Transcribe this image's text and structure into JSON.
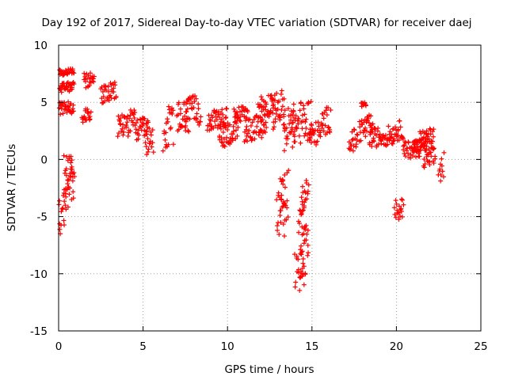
{
  "chart_data": {
    "type": "scatter",
    "title": "Day 192 of 2017, Sidereal Day-to-day VTEC variation (SDTVAR) for receiver daej",
    "xlabel": "GPS time / hours",
    "ylabel": "SDTVAR / TECUs",
    "xlim": [
      0,
      25
    ],
    "ylim": [
      -15,
      10
    ],
    "xticks": [
      0,
      5,
      10,
      15,
      20,
      25
    ],
    "yticks": [
      -15,
      -10,
      -5,
      0,
      5,
      10
    ],
    "grid": true,
    "marker": "+",
    "series": [
      {
        "name": "SDTVAR",
        "color": "#ff0000",
        "segments": [
          {
            "x0": 0.0,
            "x1": 0.35,
            "y0": -6.8,
            "y1": -2.5
          },
          {
            "x0": 0.3,
            "x1": 0.85,
            "y0": -3.0,
            "y1": 1.5
          },
          {
            "x0": 0.35,
            "x1": 0.95,
            "y0": -4.5,
            "y1": -0.6
          },
          {
            "x0": 0.05,
            "x1": 0.9,
            "y0": 7.3,
            "y1": 8.0
          },
          {
            "x0": 0.05,
            "x1": 0.9,
            "y0": 5.8,
            "y1": 6.8
          },
          {
            "x0": 0.05,
            "x1": 0.9,
            "y0": 3.8,
            "y1": 5.2
          },
          {
            "x0": 1.4,
            "x1": 1.9,
            "y0": 3.2,
            "y1": 4.8
          },
          {
            "x0": 1.5,
            "x1": 2.1,
            "y0": 6.0,
            "y1": 7.8
          },
          {
            "x0": 2.5,
            "x1": 3.4,
            "y0": 4.8,
            "y1": 6.8
          },
          {
            "x0": 3.5,
            "x1": 4.6,
            "y0": 1.8,
            "y1": 4.5
          },
          {
            "x0": 4.6,
            "x1": 5.3,
            "y0": 1.5,
            "y1": 3.8
          },
          {
            "x0": 5.1,
            "x1": 5.6,
            "y0": 0.2,
            "y1": 3.0
          },
          {
            "x0": 6.2,
            "x1": 6.8,
            "y0": 0.5,
            "y1": 5.0
          },
          {
            "x0": 7.0,
            "x1": 7.7,
            "y0": 1.5,
            "y1": 5.5
          },
          {
            "x0": 7.5,
            "x1": 8.4,
            "y0": 2.5,
            "y1": 5.8
          },
          {
            "x0": 8.8,
            "x1": 10.0,
            "y0": 2.5,
            "y1": 4.5
          },
          {
            "x0": 9.5,
            "x1": 10.6,
            "y0": 1.0,
            "y1": 3.5
          },
          {
            "x0": 10.4,
            "x1": 11.2,
            "y0": 3.2,
            "y1": 4.8
          },
          {
            "x0": 11.0,
            "x1": 12.3,
            "y0": 1.5,
            "y1": 4.0
          },
          {
            "x0": 11.8,
            "x1": 12.8,
            "y0": 3.5,
            "y1": 6.0
          },
          {
            "x0": 12.6,
            "x1": 13.4,
            "y0": 2.5,
            "y1": 6.2
          },
          {
            "x0": 12.9,
            "x1": 13.4,
            "y0": -7.8,
            "y1": -1.5
          },
          {
            "x0": 13.1,
            "x1": 13.6,
            "y0": -6.0,
            "y1": -0.8
          },
          {
            "x0": 13.3,
            "x1": 14.0,
            "y0": 0.5,
            "y1": 5.0
          },
          {
            "x0": 13.8,
            "x1": 15.0,
            "y0": 1.0,
            "y1": 5.5
          },
          {
            "x0": 14.0,
            "x1": 14.6,
            "y0": -11.8,
            "y1": -7.0
          },
          {
            "x0": 14.2,
            "x1": 14.6,
            "y0": -6.5,
            "y1": -3.5
          },
          {
            "x0": 14.3,
            "x1": 14.8,
            "y0": -10.5,
            "y1": -5.2
          },
          {
            "x0": 14.4,
            "x1": 14.8,
            "y0": -4.2,
            "y1": -1.5
          },
          {
            "x0": 14.8,
            "x1": 15.6,
            "y0": 1.0,
            "y1": 3.5
          },
          {
            "x0": 15.6,
            "x1": 16.1,
            "y0": 2.0,
            "y1": 4.8
          },
          {
            "x0": 17.2,
            "x1": 17.7,
            "y0": 0.5,
            "y1": 2.8
          },
          {
            "x0": 17.8,
            "x1": 18.6,
            "y0": 1.5,
            "y1": 4.0
          },
          {
            "x0": 17.9,
            "x1": 18.2,
            "y0": 4.6,
            "y1": 5.0
          },
          {
            "x0": 18.4,
            "x1": 19.8,
            "y0": 1.0,
            "y1": 3.0
          },
          {
            "x0": 19.8,
            "x1": 20.4,
            "y0": 1.5,
            "y1": 3.5
          },
          {
            "x0": 19.9,
            "x1": 20.4,
            "y0": -5.5,
            "y1": -3.2
          },
          {
            "x0": 20.4,
            "x1": 21.4,
            "y0": 0.0,
            "y1": 1.8
          },
          {
            "x0": 21.0,
            "x1": 21.8,
            "y0": 0.5,
            "y1": 2.0
          },
          {
            "x0": 21.4,
            "x1": 22.2,
            "y0": 1.0,
            "y1": 2.8
          },
          {
            "x0": 21.6,
            "x1": 22.3,
            "y0": -1.0,
            "y1": 1.2
          },
          {
            "x0": 22.5,
            "x1": 22.8,
            "y0": -2.3,
            "y1": 0.8
          }
        ]
      }
    ]
  }
}
